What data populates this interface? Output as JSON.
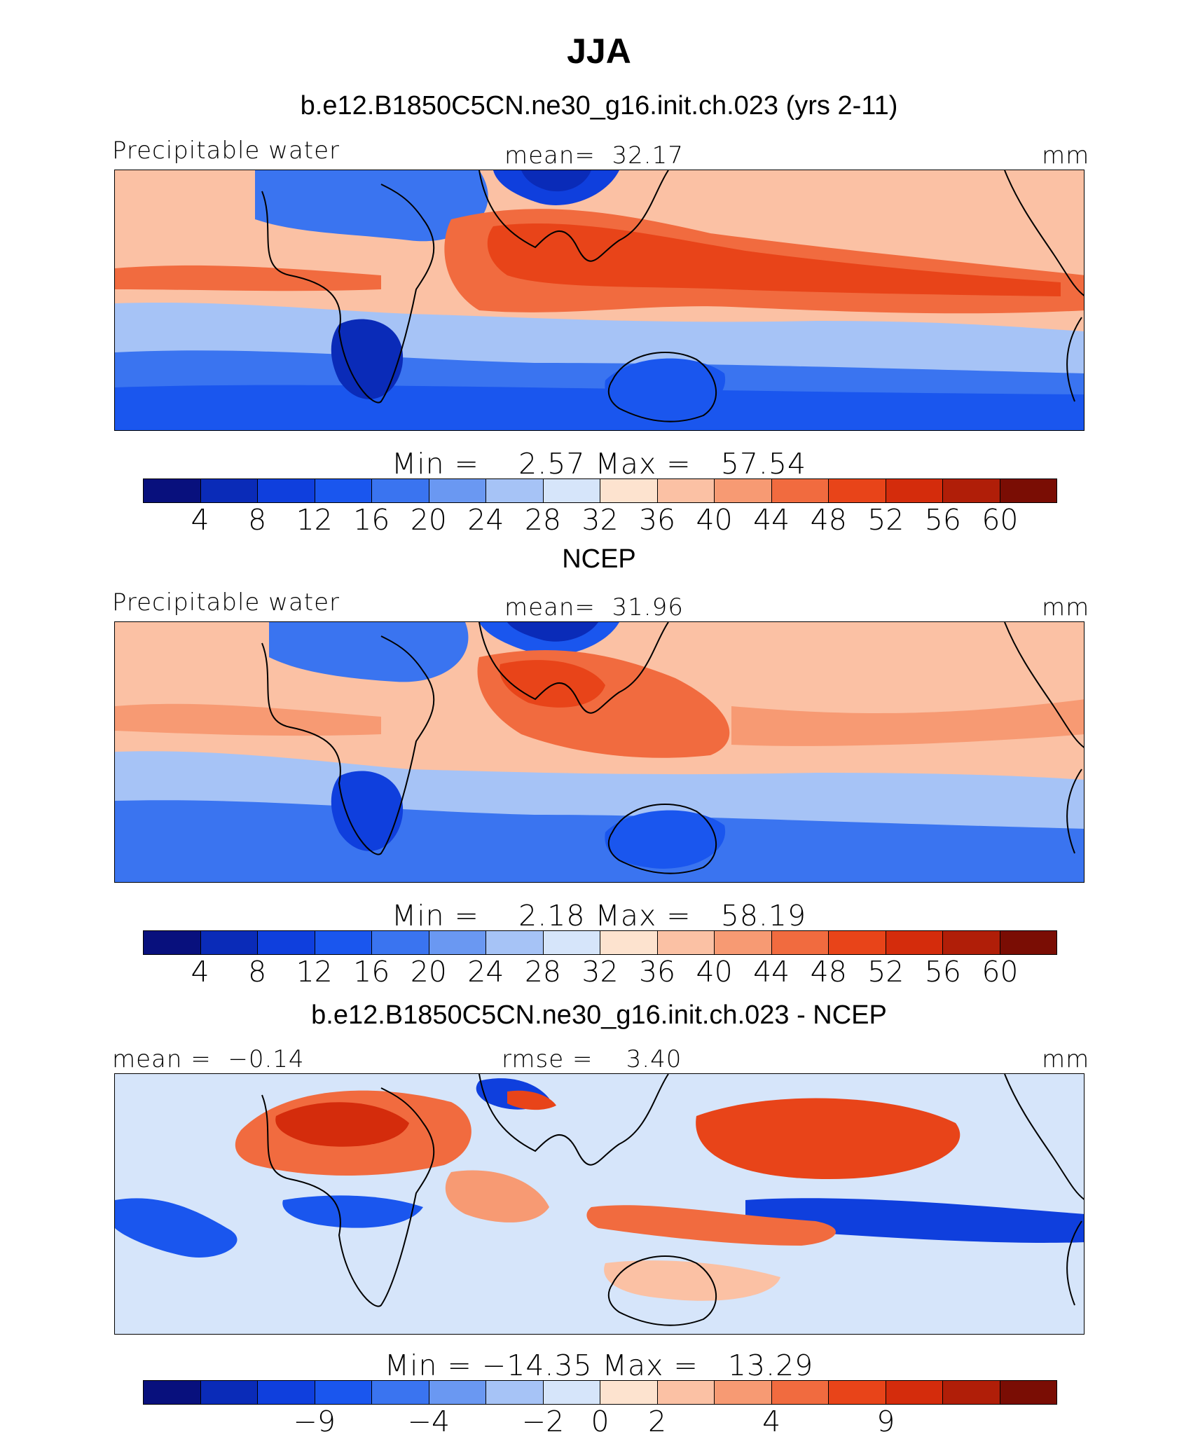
{
  "title": "JJA",
  "colors": [
    "#08107d",
    "#0a2bb8",
    "#0f3fdd",
    "#1a56ee",
    "#3a74f0",
    "#6a98f2",
    "#a6c3f6",
    "#d6e5fa",
    "#fde3cf",
    "#fbc1a4",
    "#f79a73",
    "#f16b3f",
    "#e84419",
    "#d42c0c",
    "#b01e08",
    "#7a0d04"
  ],
  "panels": [
    {
      "title": "b.e12.B1850C5CN.ne30_g16.init.ch.023 (yrs 2-11)",
      "left_label": "Precipitable water",
      "center_label": "mean=  32.17",
      "right_label": "mm",
      "stats": "Min =    2.57 Max =   57.54",
      "tick_labels": [
        "4",
        "8",
        "12",
        "16",
        "20",
        "24",
        "28",
        "32",
        "36",
        "40",
        "44",
        "48",
        "52",
        "56",
        "60"
      ]
    },
    {
      "title": "NCEP",
      "left_label": "Precipitable water",
      "center_label": "mean=  31.96",
      "right_label": "mm",
      "stats": "Min =    2.18 Max =   58.19",
      "tick_labels": [
        "4",
        "8",
        "12",
        "16",
        "20",
        "24",
        "28",
        "32",
        "36",
        "40",
        "44",
        "48",
        "52",
        "56",
        "60"
      ]
    },
    {
      "title": "b.e12.B1850C5CN.ne30_g16.init.ch.023 - NCEP",
      "left_label": "mean =  −0.14",
      "center_label": "rmse =    3.40",
      "right_label": "mm",
      "stats": "Min = −14.35 Max =   13.29",
      "tick_labels": [
        "−9",
        "−4",
        "−2",
        "0",
        "2",
        "4",
        "9"
      ]
    }
  ],
  "chart_data": [
    {
      "type": "heatmap",
      "title": "b.e12.B1850C5CN.ne30_g16.init.ch.023 (yrs 2-11)",
      "variable": "Precipitable water",
      "units": "mm",
      "mean": 32.17,
      "min": 2.57,
      "max": 57.54,
      "levels": [
        4,
        8,
        12,
        16,
        20,
        24,
        28,
        32,
        36,
        40,
        44,
        48,
        52,
        56,
        60
      ]
    },
    {
      "type": "heatmap",
      "title": "NCEP",
      "variable": "Precipitable water",
      "units": "mm",
      "mean": 31.96,
      "min": 2.18,
      "max": 58.19,
      "levels": [
        4,
        8,
        12,
        16,
        20,
        24,
        28,
        32,
        36,
        40,
        44,
        48,
        52,
        56,
        60
      ]
    },
    {
      "type": "heatmap",
      "title": "b.e12.B1850C5CN.ne30_g16.init.ch.023 - NCEP",
      "units": "mm",
      "mean": -0.14,
      "rmse": 3.4,
      "min": -14.35,
      "max": 13.29,
      "levels": [
        -9,
        -4,
        -2,
        0,
        2,
        4,
        9
      ]
    }
  ]
}
